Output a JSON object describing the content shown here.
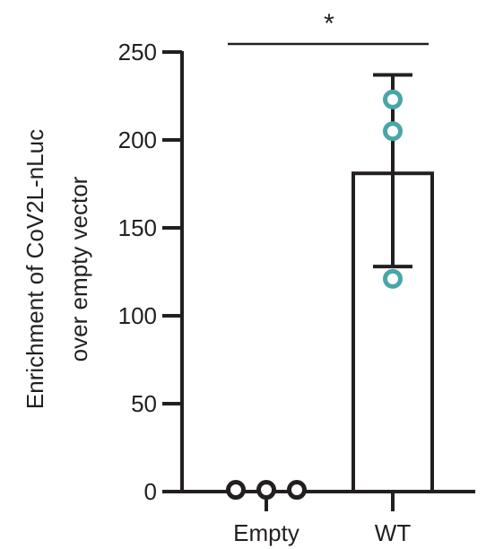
{
  "colors": {
    "ink": "#231f20",
    "wt_points": "#49a6a8",
    "empty_points": "#231f20",
    "bar_fill": "#ffffff"
  },
  "chart_data": {
    "type": "bar",
    "categories": [
      "Empty",
      "WT"
    ],
    "values": [
      0,
      181
    ],
    "error_bars": [
      {
        "lower": 0,
        "upper": 0
      },
      {
        "lower": 128,
        "upper": 237
      }
    ],
    "points": [
      [
        1,
        1,
        1
      ],
      [
        223,
        205,
        121
      ]
    ],
    "ylabel_lines": [
      "Enrichment of CoV2L-nLuc",
      "over empty vector"
    ],
    "xlabel": "",
    "title": "",
    "yticks": [
      0,
      50,
      100,
      150,
      200,
      250
    ],
    "ylim": [
      0,
      250
    ],
    "significance": {
      "label": "*",
      "from": "Empty",
      "to": "WT"
    },
    "grid": false,
    "legend": "none"
  }
}
